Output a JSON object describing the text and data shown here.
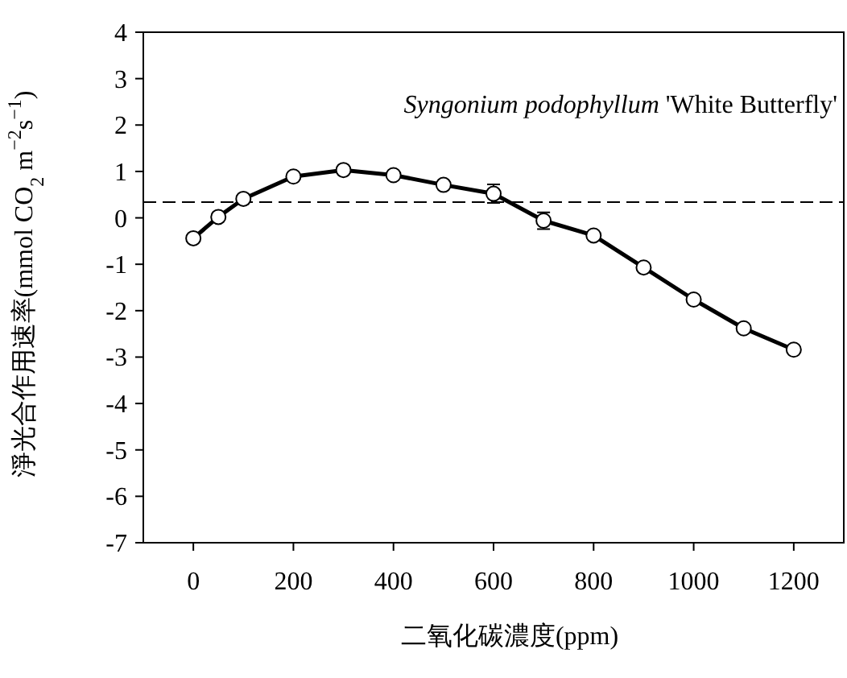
{
  "chart_data": {
    "type": "line",
    "xlabel": "二氧化碳濃度(ppm)",
    "ylabel": "淨光合作用速率(mmol CO$_{2}$ m$^{−2}$s$^{−1}$)",
    "annotations": [
      "Syngonium podophyllum 'White Butterfly'"
    ],
    "x": [
      0,
      50,
      100,
      200,
      300,
      400,
      500,
      600,
      700,
      800,
      900,
      1000,
      1100,
      1200
    ],
    "series": [
      {
        "color": "#000000",
        "values": [
          -0.44,
          0.02,
          0.41,
          0.89,
          1.03,
          0.92,
          0.71,
          0.52,
          -0.06,
          -0.38,
          -1.07,
          -1.76,
          -2.38,
          -2.84
        ],
        "errors": [
          null,
          null,
          null,
          null,
          null,
          null,
          null,
          0.2,
          0.18,
          null,
          null,
          null,
          null,
          null
        ]
      }
    ],
    "marker": "circle",
    "line_style": "solid",
    "grid": false,
    "ref_lines": [
      {
        "axis": "y",
        "value": 0.34,
        "color": "#000000",
        "line_style": "dashed"
      }
    ],
    "xlim": [
      -100,
      1300
    ],
    "xticks": [
      0,
      200,
      400,
      600,
      800,
      1000,
      1200
    ],
    "ylim": [
      -7,
      4
    ],
    "yticks": [
      -7,
      -6,
      -5,
      -4,
      -3,
      -2,
      -1,
      0,
      1,
      2,
      3,
      4
    ]
  }
}
